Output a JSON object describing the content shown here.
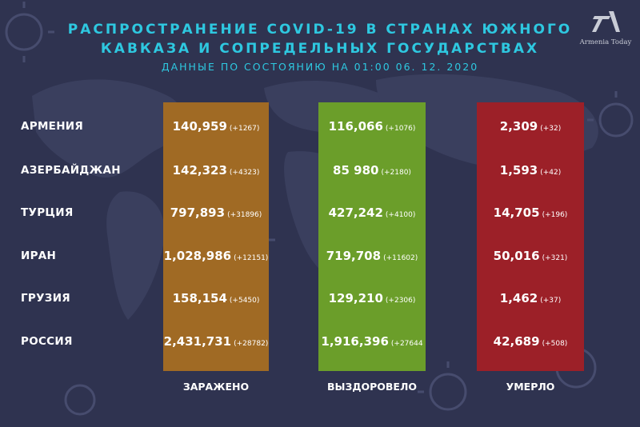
{
  "header": {
    "title_line1": "РАСПРОСТРАНЕНИЕ COVID-19 В СТРАНАХ ЮЖНОГО",
    "title_line2": "КАВКАЗА И СОПРЕДЕЛЬНЫХ ГОСУДАРСТВАХ",
    "subtitle": "ДАННЫЕ ПО СОСТОЯНИЮ НА 01:00   06. 12. 2020"
  },
  "logo": {
    "text": "Armenia Today",
    "icon": "armenia-today-logo"
  },
  "colors": {
    "background": "#2f3350",
    "accent": "#2ec8e0",
    "infected": "#a06a24",
    "recovered": "#6b9e2a",
    "deaths": "#9c2028"
  },
  "columns": {
    "infected": "ЗАРАЖЕНО",
    "recovered": "ВЫЗДОРОВЕЛО",
    "deaths": "УМЕРЛО"
  },
  "rows": [
    {
      "country": "АРМЕНИЯ",
      "infected": {
        "value": "140,959",
        "change": "(+1267)"
      },
      "recovered": {
        "value": "116,066",
        "change": "(+1076)"
      },
      "deaths": {
        "value": "2,309",
        "change": "(+32)"
      }
    },
    {
      "country": "АЗЕРБАЙДЖАН",
      "infected": {
        "value": "142,323",
        "change": "(+4323)"
      },
      "recovered": {
        "value": "85 980",
        "change": "(+2180)"
      },
      "deaths": {
        "value": "1,593",
        "change": "(+42)"
      }
    },
    {
      "country": "ТУРЦИЯ",
      "infected": {
        "value": "797,893",
        "change": "(+31896)"
      },
      "recovered": {
        "value": "427,242",
        "change": "(+4100)"
      },
      "deaths": {
        "value": "14,705",
        "change": "(+196)"
      }
    },
    {
      "country": "ИРАН",
      "infected": {
        "value": "1,028,986",
        "change": "(+12151)"
      },
      "recovered": {
        "value": "719,708",
        "change": "(+11602)"
      },
      "deaths": {
        "value": "50,016",
        "change": "(+321)"
      }
    },
    {
      "country": "ГРУЗИЯ",
      "infected": {
        "value": "158,154",
        "change": "(+5450)"
      },
      "recovered": {
        "value": "129,210",
        "change": "(+2306)"
      },
      "deaths": {
        "value": "1,462",
        "change": "(+37)"
      }
    },
    {
      "country": "РОССИЯ",
      "infected": {
        "value": "2,431,731",
        "change": "(+28782)"
      },
      "recovered": {
        "value": "1,916,396",
        "change": "(+27644"
      },
      "deaths": {
        "value": "42,689",
        "change": "(+508)"
      }
    }
  ]
}
